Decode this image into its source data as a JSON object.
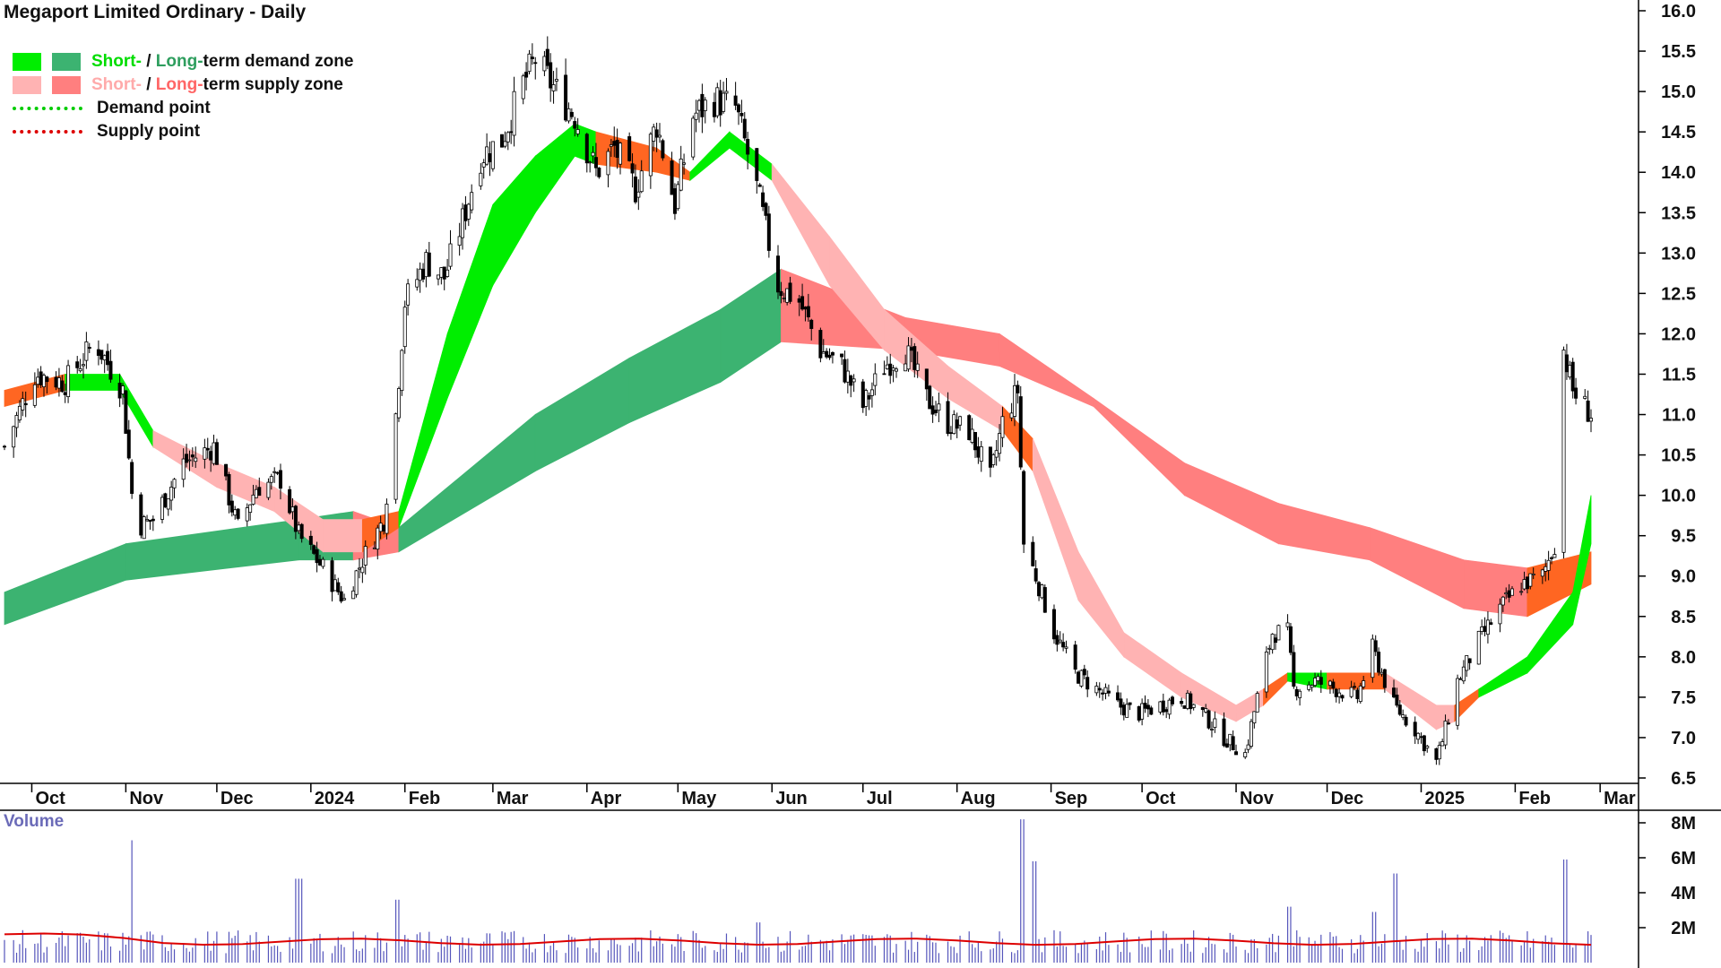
{
  "title": "Megaport Limited Ordinary - Daily",
  "legend": {
    "demand_zone": {
      "short": "Short-",
      "sep": " / ",
      "long": "Long-",
      "rest": "term demand zone"
    },
    "supply_zone": {
      "short": "Short-",
      "sep": " / ",
      "long": "Long-",
      "rest": "term supply zone"
    },
    "demand_point": "Demand point",
    "supply_point": "Supply point"
  },
  "colors": {
    "short_demand": "#00ee00",
    "long_demand": "#3cb371",
    "short_supply": "#ffb3b3",
    "long_supply": "#ff7f7f",
    "crossover": "#ff6622",
    "demand_point": "#00cc00",
    "supply_point": "#dd0000",
    "volume_bar": "#5555bb",
    "volume_avg": "#dd0000"
  },
  "volume_label": "Volume",
  "chart_data": {
    "type": "candlestick",
    "title": "Megaport Limited Ordinary - Daily",
    "x_tick_labels": [
      "Oct",
      "Nov",
      "Dec",
      "2024",
      "Feb",
      "Mar",
      "Apr",
      "May",
      "Jun",
      "Jul",
      "Aug",
      "Sep",
      "Oct",
      "Nov",
      "Dec",
      "2025",
      "Feb",
      "Mar"
    ],
    "y_axis": {
      "min": 6.5,
      "max": 16.0,
      "step": 0.5,
      "side": "right",
      "tick_labels": [
        "16.0",
        "15.5",
        "15.0",
        "14.5",
        "14.0",
        "13.5",
        "13.0",
        "12.5",
        "12.0",
        "11.5",
        "11.0",
        "10.5",
        "10.0",
        "9.5",
        "9.0",
        "8.5",
        "8.0",
        "7.5",
        "7.0",
        "6.5"
      ]
    },
    "volume_axis": {
      "min": 0,
      "max": 8000000,
      "tick_labels": [
        "8M",
        "6M",
        "4M",
        "2M"
      ]
    },
    "close_anchors": [
      {
        "date": "2023-09-22",
        "close": 10.6
      },
      {
        "date": "2023-10-02",
        "close": 11.5
      },
      {
        "date": "2023-10-12",
        "close": 11.4
      },
      {
        "date": "2023-10-22",
        "close": 11.9
      },
      {
        "date": "2023-10-31",
        "close": 11.3
      },
      {
        "date": "2023-11-04",
        "close": 9.6
      },
      {
        "date": "2023-11-10",
        "close": 9.7
      },
      {
        "date": "2023-11-20",
        "close": 10.4
      },
      {
        "date": "2023-11-30",
        "close": 10.6
      },
      {
        "date": "2023-12-08",
        "close": 9.6
      },
      {
        "date": "2023-12-14",
        "close": 10.1
      },
      {
        "date": "2023-12-22",
        "close": 10.2
      },
      {
        "date": "2023-12-28",
        "close": 9.5
      },
      {
        "date": "2024-01-05",
        "close": 9.1
      },
      {
        "date": "2024-01-12",
        "close": 8.7
      },
      {
        "date": "2024-01-18",
        "close": 9.2
      },
      {
        "date": "2024-01-25",
        "close": 9.7
      },
      {
        "date": "2024-01-29",
        "close": 11.0
      },
      {
        "date": "2024-02-01",
        "close": 12.4
      },
      {
        "date": "2024-02-08",
        "close": 12.9
      },
      {
        "date": "2024-02-14",
        "close": 12.7
      },
      {
        "date": "2024-02-20",
        "close": 13.4
      },
      {
        "date": "2024-02-26",
        "close": 14.2
      },
      {
        "date": "2024-03-04",
        "close": 14.4
      },
      {
        "date": "2024-03-11",
        "close": 15.1
      },
      {
        "date": "2024-03-15",
        "close": 15.4
      },
      {
        "date": "2024-03-22",
        "close": 15.0
      },
      {
        "date": "2024-03-28",
        "close": 14.7
      },
      {
        "date": "2024-04-04",
        "close": 14.0
      },
      {
        "date": "2024-04-10",
        "close": 14.3
      },
      {
        "date": "2024-04-17",
        "close": 13.8
      },
      {
        "date": "2024-04-24",
        "close": 14.6
      },
      {
        "date": "2024-04-30",
        "close": 13.6
      },
      {
        "date": "2024-05-06",
        "close": 14.7
      },
      {
        "date": "2024-05-13",
        "close": 14.9
      },
      {
        "date": "2024-05-20",
        "close": 14.8
      },
      {
        "date": "2024-05-27",
        "close": 13.8
      },
      {
        "date": "2024-06-03",
        "close": 12.6
      },
      {
        "date": "2024-06-10",
        "close": 12.4
      },
      {
        "date": "2024-06-17",
        "close": 11.8
      },
      {
        "date": "2024-06-24",
        "close": 11.6
      },
      {
        "date": "2024-07-01",
        "close": 11.1
      },
      {
        "date": "2024-07-08",
        "close": 11.6
      },
      {
        "date": "2024-07-15",
        "close": 11.8
      },
      {
        "date": "2024-07-22",
        "close": 11.2
      },
      {
        "date": "2024-07-29",
        "close": 10.9
      },
      {
        "date": "2024-08-05",
        "close": 10.8
      },
      {
        "date": "2024-08-12",
        "close": 10.2
      },
      {
        "date": "2024-08-16",
        "close": 10.9
      },
      {
        "date": "2024-08-21",
        "close": 11.3
      },
      {
        "date": "2024-08-23",
        "close": 9.4
      },
      {
        "date": "2024-08-27",
        "close": 9.0
      },
      {
        "date": "2024-09-02",
        "close": 8.3
      },
      {
        "date": "2024-09-09",
        "close": 7.8
      },
      {
        "date": "2024-09-16",
        "close": 7.6
      },
      {
        "date": "2024-09-23",
        "close": 7.4
      },
      {
        "date": "2024-09-30",
        "close": 7.3
      },
      {
        "date": "2024-10-07",
        "close": 7.4
      },
      {
        "date": "2024-10-14",
        "close": 7.5
      },
      {
        "date": "2024-10-21",
        "close": 7.3
      },
      {
        "date": "2024-10-28",
        "close": 7.0
      },
      {
        "date": "2024-11-04",
        "close": 6.8
      },
      {
        "date": "2024-11-08",
        "close": 7.5
      },
      {
        "date": "2024-11-13",
        "close": 8.3
      },
      {
        "date": "2024-11-18",
        "close": 8.3
      },
      {
        "date": "2024-11-20",
        "close": 7.6
      },
      {
        "date": "2024-11-27",
        "close": 7.7
      },
      {
        "date": "2024-12-04",
        "close": 7.6
      },
      {
        "date": "2024-12-11",
        "close": 7.5
      },
      {
        "date": "2024-12-16",
        "close": 8.1
      },
      {
        "date": "2024-12-23",
        "close": 7.4
      },
      {
        "date": "2024-12-30",
        "close": 7.1
      },
      {
        "date": "2025-01-06",
        "close": 6.7
      },
      {
        "date": "2025-01-09",
        "close": 7.1
      },
      {
        "date": "2025-01-13",
        "close": 7.7
      },
      {
        "date": "2025-01-20",
        "close": 8.2
      },
      {
        "date": "2025-01-27",
        "close": 8.6
      },
      {
        "date": "2025-02-03",
        "close": 8.9
      },
      {
        "date": "2025-02-10",
        "close": 9.0
      },
      {
        "date": "2025-02-14",
        "close": 9.4
      },
      {
        "date": "2025-02-17",
        "close": 11.8
      },
      {
        "date": "2025-02-20",
        "close": 11.3
      },
      {
        "date": "2025-02-24",
        "close": 11.1
      },
      {
        "date": "2025-02-26",
        "close": 11.0
      }
    ],
    "long_term_zone": [
      {
        "date": "2023-09-22",
        "top": 8.8,
        "bottom": 8.4,
        "kind": "demand"
      },
      {
        "date": "2023-11-01",
        "top": 9.4,
        "bottom": 8.95,
        "kind": "demand"
      },
      {
        "date": "2023-12-28",
        "top": 9.7,
        "bottom": 9.2,
        "kind": "demand"
      },
      {
        "date": "2024-01-15",
        "top": 9.8,
        "bottom": 9.2,
        "kind": "supply"
      },
      {
        "date": "2024-01-30",
        "top": 9.6,
        "bottom": 9.3,
        "kind": "demand"
      },
      {
        "date": "2024-03-15",
        "top": 11.0,
        "bottom": 10.3,
        "kind": "demand"
      },
      {
        "date": "2024-04-15",
        "top": 11.7,
        "bottom": 10.9,
        "kind": "demand"
      },
      {
        "date": "2024-05-15",
        "top": 12.3,
        "bottom": 11.4,
        "kind": "demand"
      },
      {
        "date": "2024-06-04",
        "top": 12.8,
        "bottom": 11.9,
        "kind": "supply"
      },
      {
        "date": "2024-07-15",
        "top": 12.2,
        "bottom": 11.8,
        "kind": "supply"
      },
      {
        "date": "2024-08-15",
        "top": 12.0,
        "bottom": 11.6,
        "kind": "supply"
      },
      {
        "date": "2024-09-15",
        "top": 11.2,
        "bottom": 11.1,
        "kind": "supply"
      },
      {
        "date": "2024-10-15",
        "top": 10.4,
        "bottom": 10.0,
        "kind": "supply"
      },
      {
        "date": "2024-11-15",
        "top": 9.9,
        "bottom": 9.4,
        "kind": "supply"
      },
      {
        "date": "2024-12-15",
        "top": 9.6,
        "bottom": 9.2,
        "kind": "supply"
      },
      {
        "date": "2025-01-15",
        "top": 9.2,
        "bottom": 8.6,
        "kind": "supply"
      },
      {
        "date": "2025-02-05",
        "top": 9.1,
        "bottom": 8.5,
        "kind": "crossover"
      },
      {
        "date": "2025-02-26",
        "top": 9.3,
        "bottom": 8.9,
        "kind": "crossover"
      }
    ],
    "short_term_zone": [
      {
        "date": "2023-09-22",
        "top": 11.3,
        "bottom": 11.1,
        "kind": "crossover"
      },
      {
        "date": "2023-10-12",
        "top": 11.5,
        "bottom": 11.3,
        "kind": "demand"
      },
      {
        "date": "2023-10-30",
        "top": 11.5,
        "bottom": 11.3,
        "kind": "demand"
      },
      {
        "date": "2023-11-10",
        "top": 10.8,
        "bottom": 10.6,
        "kind": "supply"
      },
      {
        "date": "2023-12-01",
        "top": 10.4,
        "bottom": 10.1,
        "kind": "supply"
      },
      {
        "date": "2023-12-20",
        "top": 10.1,
        "bottom": 9.8,
        "kind": "supply"
      },
      {
        "date": "2024-01-05",
        "top": 9.7,
        "bottom": 9.3,
        "kind": "supply"
      },
      {
        "date": "2024-01-18",
        "top": 9.7,
        "bottom": 9.3,
        "kind": "crossover"
      },
      {
        "date": "2024-01-30",
        "top": 9.8,
        "bottom": 9.6,
        "kind": "demand"
      },
      {
        "date": "2024-02-15",
        "top": 12.0,
        "bottom": 11.2,
        "kind": "demand"
      },
      {
        "date": "2024-03-01",
        "top": 13.6,
        "bottom": 12.6,
        "kind": "demand"
      },
      {
        "date": "2024-03-15",
        "top": 14.2,
        "bottom": 13.5,
        "kind": "demand"
      },
      {
        "date": "2024-03-28",
        "top": 14.6,
        "bottom": 14.2,
        "kind": "demand"
      },
      {
        "date": "2024-04-04",
        "top": 14.5,
        "bottom": 14.1,
        "kind": "crossover"
      },
      {
        "date": "2024-04-24",
        "top": 14.3,
        "bottom": 14.0,
        "kind": "crossover"
      },
      {
        "date": "2024-05-05",
        "top": 14.0,
        "bottom": 13.9,
        "kind": "demand"
      },
      {
        "date": "2024-05-18",
        "top": 14.5,
        "bottom": 14.3,
        "kind": "demand"
      },
      {
        "date": "2024-06-01",
        "top": 14.1,
        "bottom": 13.9,
        "kind": "supply"
      },
      {
        "date": "2024-06-20",
        "top": 13.2,
        "bottom": 12.6,
        "kind": "supply"
      },
      {
        "date": "2024-07-08",
        "top": 12.3,
        "bottom": 11.8,
        "kind": "supply"
      },
      {
        "date": "2024-07-29",
        "top": 11.6,
        "bottom": 11.2,
        "kind": "supply"
      },
      {
        "date": "2024-08-16",
        "top": 11.1,
        "bottom": 10.8,
        "kind": "crossover"
      },
      {
        "date": "2024-08-26",
        "top": 10.7,
        "bottom": 10.3,
        "kind": "supply"
      },
      {
        "date": "2024-09-10",
        "top": 9.3,
        "bottom": 8.7,
        "kind": "supply"
      },
      {
        "date": "2024-09-25",
        "top": 8.3,
        "bottom": 8.0,
        "kind": "supply"
      },
      {
        "date": "2024-10-14",
        "top": 7.8,
        "bottom": 7.5,
        "kind": "supply"
      },
      {
        "date": "2024-11-01",
        "top": 7.4,
        "bottom": 7.2,
        "kind": "supply"
      },
      {
        "date": "2024-11-10",
        "top": 7.6,
        "bottom": 7.4,
        "kind": "crossover"
      },
      {
        "date": "2024-11-18",
        "top": 7.8,
        "bottom": 7.7,
        "kind": "demand"
      },
      {
        "date": "2024-12-01",
        "top": 7.8,
        "bottom": 7.6,
        "kind": "crossover"
      },
      {
        "date": "2024-12-20",
        "top": 7.8,
        "bottom": 7.6,
        "kind": "supply"
      },
      {
        "date": "2025-01-06",
        "top": 7.4,
        "bottom": 7.1,
        "kind": "supply"
      },
      {
        "date": "2025-01-12",
        "top": 7.4,
        "bottom": 7.2,
        "kind": "crossover"
      },
      {
        "date": "2025-01-20",
        "top": 7.6,
        "bottom": 7.5,
        "kind": "demand"
      },
      {
        "date": "2025-02-05",
        "top": 8.0,
        "bottom": 7.8,
        "kind": "demand"
      },
      {
        "date": "2025-02-20",
        "top": 8.8,
        "bottom": 8.4,
        "kind": "demand"
      },
      {
        "date": "2025-02-26",
        "top": 10.0,
        "bottom": 9.4,
        "kind": "demand"
      }
    ],
    "volume_spikes": [
      {
        "date": "2023-11-04",
        "value": 7000000
      },
      {
        "date": "2023-12-28",
        "value": 4800000
      },
      {
        "date": "2024-01-29",
        "value": 3600000
      },
      {
        "date": "2024-05-27",
        "value": 2300000
      },
      {
        "date": "2024-08-23",
        "value": 8200000
      },
      {
        "date": "2024-08-26",
        "value": 5800000
      },
      {
        "date": "2024-11-18",
        "value": 3200000
      },
      {
        "date": "2024-12-16",
        "value": 2900000
      },
      {
        "date": "2024-12-23",
        "value": 5100000
      },
      {
        "date": "2025-02-17",
        "value": 5900000
      }
    ],
    "volume_average": 1200000
  }
}
